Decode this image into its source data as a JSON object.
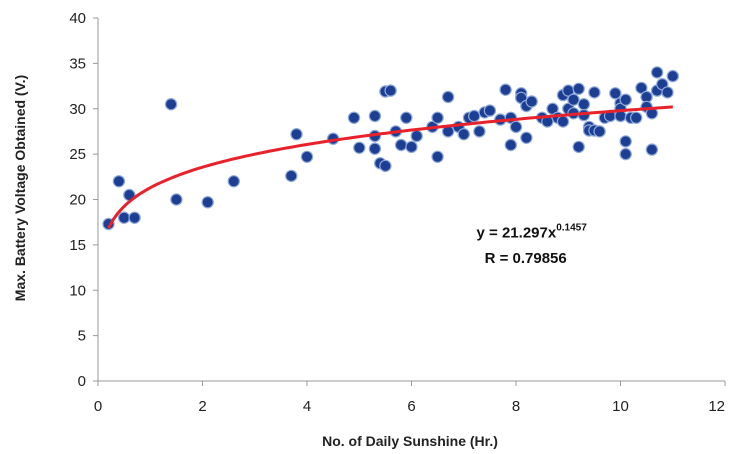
{
  "chart_data": {
    "type": "scatter",
    "xlabel": "No. of Daily Sunshine (Hr.)",
    "ylabel": "Max. Battery Voltage Obtained (V.)",
    "xlim": [
      0,
      12
    ],
    "ylim": [
      0,
      40
    ],
    "xticks": [
      "0",
      "2",
      "4",
      "6",
      "8",
      "10",
      "12"
    ],
    "yticks": [
      "0",
      "5",
      "10",
      "15",
      "20",
      "25",
      "30",
      "35",
      "40"
    ],
    "grid": false,
    "legend": "none",
    "colors": {
      "points": "#1c3f94",
      "point_edge": "#8fa8d8",
      "trend": "#e8222a",
      "axis": "#999999"
    },
    "series": [
      {
        "values": [
          [
            0.2,
            17.3
          ],
          [
            0.4,
            22.0
          ],
          [
            0.5,
            18.0
          ],
          [
            0.6,
            20.5
          ],
          [
            0.7,
            18.0
          ],
          [
            1.4,
            30.5
          ],
          [
            1.5,
            20.0
          ],
          [
            2.1,
            19.7
          ],
          [
            2.6,
            22.0
          ],
          [
            3.7,
            22.6
          ],
          [
            3.8,
            27.2
          ],
          [
            4.0,
            24.7
          ],
          [
            4.5,
            26.7
          ],
          [
            4.9,
            29.0
          ],
          [
            5.0,
            25.7
          ],
          [
            5.3,
            29.2
          ],
          [
            5.3,
            27.0
          ],
          [
            5.3,
            25.6
          ],
          [
            5.4,
            24.0
          ],
          [
            5.5,
            23.7
          ],
          [
            5.5,
            31.9
          ],
          [
            5.6,
            32.0
          ],
          [
            5.7,
            27.5
          ],
          [
            5.8,
            26.0
          ],
          [
            5.9,
            29.0
          ],
          [
            6.0,
            25.8
          ],
          [
            6.1,
            27.0
          ],
          [
            6.4,
            28.0
          ],
          [
            6.5,
            29.0
          ],
          [
            6.5,
            24.7
          ],
          [
            6.7,
            31.3
          ],
          [
            6.7,
            27.5
          ],
          [
            6.9,
            28.0
          ],
          [
            7.0,
            27.2
          ],
          [
            7.1,
            29.0
          ],
          [
            7.2,
            29.2
          ],
          [
            7.3,
            27.5
          ],
          [
            7.4,
            29.6
          ],
          [
            7.5,
            29.8
          ],
          [
            7.7,
            28.8
          ],
          [
            7.8,
            32.1
          ],
          [
            7.9,
            29.0
          ],
          [
            7.9,
            26.0
          ],
          [
            8.0,
            28.0
          ],
          [
            8.1,
            31.7
          ],
          [
            8.1,
            31.2
          ],
          [
            8.2,
            30.3
          ],
          [
            8.2,
            26.8
          ],
          [
            8.3,
            30.8
          ],
          [
            8.5,
            29.0
          ],
          [
            8.6,
            28.6
          ],
          [
            8.7,
            30.0
          ],
          [
            8.8,
            29.0
          ],
          [
            8.9,
            31.5
          ],
          [
            8.9,
            28.6
          ],
          [
            9.0,
            30.0
          ],
          [
            9.0,
            32.0
          ],
          [
            9.1,
            31.0
          ],
          [
            9.1,
            29.5
          ],
          [
            9.2,
            32.2
          ],
          [
            9.2,
            25.8
          ],
          [
            9.3,
            30.5
          ],
          [
            9.3,
            29.3
          ],
          [
            9.4,
            28.0
          ],
          [
            9.4,
            27.6
          ],
          [
            9.5,
            31.8
          ],
          [
            9.5,
            27.6
          ],
          [
            9.6,
            27.5
          ],
          [
            9.7,
            29.0
          ],
          [
            9.8,
            29.2
          ],
          [
            9.9,
            31.7
          ],
          [
            10.0,
            30.6
          ],
          [
            10.0,
            30.0
          ],
          [
            10.0,
            29.2
          ],
          [
            10.1,
            31.0
          ],
          [
            10.1,
            26.4
          ],
          [
            10.1,
            25.0
          ],
          [
            10.2,
            29.0
          ],
          [
            10.3,
            29.0
          ],
          [
            10.4,
            32.3
          ],
          [
            10.5,
            31.3
          ],
          [
            10.5,
            30.2
          ],
          [
            10.6,
            25.5
          ],
          [
            10.6,
            29.5
          ],
          [
            10.7,
            32.0
          ],
          [
            10.7,
            34.0
          ],
          [
            10.8,
            32.7
          ],
          [
            10.9,
            31.8
          ],
          [
            11.0,
            33.6
          ]
        ]
      }
    ],
    "trendline": {
      "type": "power",
      "a": 21.297,
      "b": 0.1457,
      "x_range": [
        0.2,
        11.0
      ]
    },
    "annotations": [
      {
        "text": "y = 21.297x",
        "sup": "0.1457",
        "anchor": [
          8.3,
          15.8
        ]
      },
      {
        "text": "R = 0.79856",
        "anchor": [
          8.3,
          13.0
        ]
      }
    ]
  }
}
